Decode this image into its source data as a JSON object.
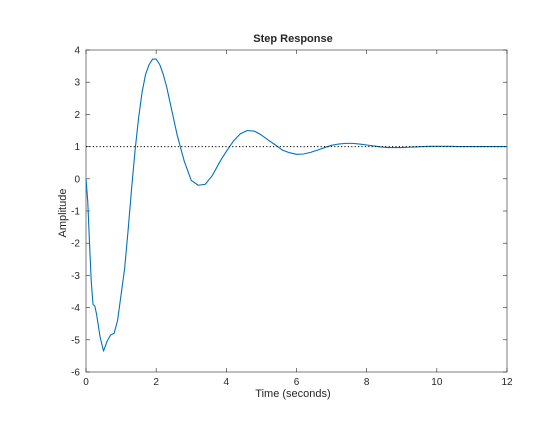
{
  "chart_data": {
    "type": "line",
    "title": "Step Response",
    "xlabel": "Time (seconds)",
    "ylabel": "Amplitude",
    "xlim": [
      0,
      12
    ],
    "ylim": [
      -6,
      4
    ],
    "xticks": [
      0,
      2,
      4,
      6,
      8,
      10,
      12
    ],
    "yticks": [
      -6,
      -5,
      -4,
      -3,
      -2,
      -1,
      0,
      1,
      2,
      3,
      4
    ],
    "grid": false,
    "legend": "none",
    "series": [
      {
        "color": "#0072BD",
        "style": "solid",
        "x": [
          0,
          0.05,
          0.1,
          0.15,
          0.2,
          0.25,
          0.3,
          0.4,
          0.5,
          0.55,
          0.6,
          0.7,
          0.8,
          0.9,
          1.0,
          1.1,
          1.2,
          1.3,
          1.4,
          1.5,
          1.6,
          1.7,
          1.8,
          1.9,
          2.0,
          2.1,
          2.2,
          2.3,
          2.4,
          2.5,
          2.6,
          2.8,
          3.0,
          3.2,
          3.4,
          3.6,
          3.8,
          3.9,
          4.0,
          4.2,
          4.4,
          4.6,
          4.8,
          5.0,
          5.2,
          5.4,
          5.5,
          5.6,
          5.8,
          6.0,
          6.2,
          6.4,
          6.6,
          6.8,
          7.0,
          7.2,
          7.4,
          7.6,
          7.8,
          8.0,
          8.2,
          8.4,
          8.6,
          8.8,
          9.0,
          9.2,
          9.4,
          9.6,
          9.8,
          10.0,
          10.2,
          10.4,
          10.6,
          10.8,
          11.0,
          11.2,
          11.4,
          11.6,
          11.8,
          12.0
        ],
        "y": [
          0,
          -0.7,
          -2.0,
          -3.2,
          -3.9,
          -3.95,
          -4.2,
          -4.9,
          -5.35,
          -5.2,
          -5.05,
          -4.85,
          -4.8,
          -4.4,
          -3.6,
          -2.8,
          -1.6,
          -0.3,
          0.9,
          1.9,
          2.7,
          3.25,
          3.55,
          3.72,
          3.72,
          3.55,
          3.25,
          2.85,
          2.35,
          1.85,
          1.35,
          0.55,
          -0.05,
          -0.2,
          -0.17,
          0.1,
          0.5,
          0.68,
          0.85,
          1.17,
          1.4,
          1.5,
          1.48,
          1.36,
          1.2,
          1.05,
          0.97,
          0.89,
          0.81,
          0.76,
          0.77,
          0.82,
          0.89,
          0.97,
          1.04,
          1.08,
          1.1,
          1.1,
          1.08,
          1.05,
          1.02,
          0.99,
          0.97,
          0.97,
          0.97,
          0.98,
          0.99,
          1.0,
          1.01,
          1.01,
          1.01,
          1.01,
          1.0,
          1.0,
          1.0,
          1.0,
          1.0,
          1.0,
          1.0,
          1.0
        ]
      },
      {
        "color": "#000000",
        "style": "dotted",
        "x": [
          0,
          12
        ],
        "y": [
          1,
          1
        ]
      }
    ]
  }
}
